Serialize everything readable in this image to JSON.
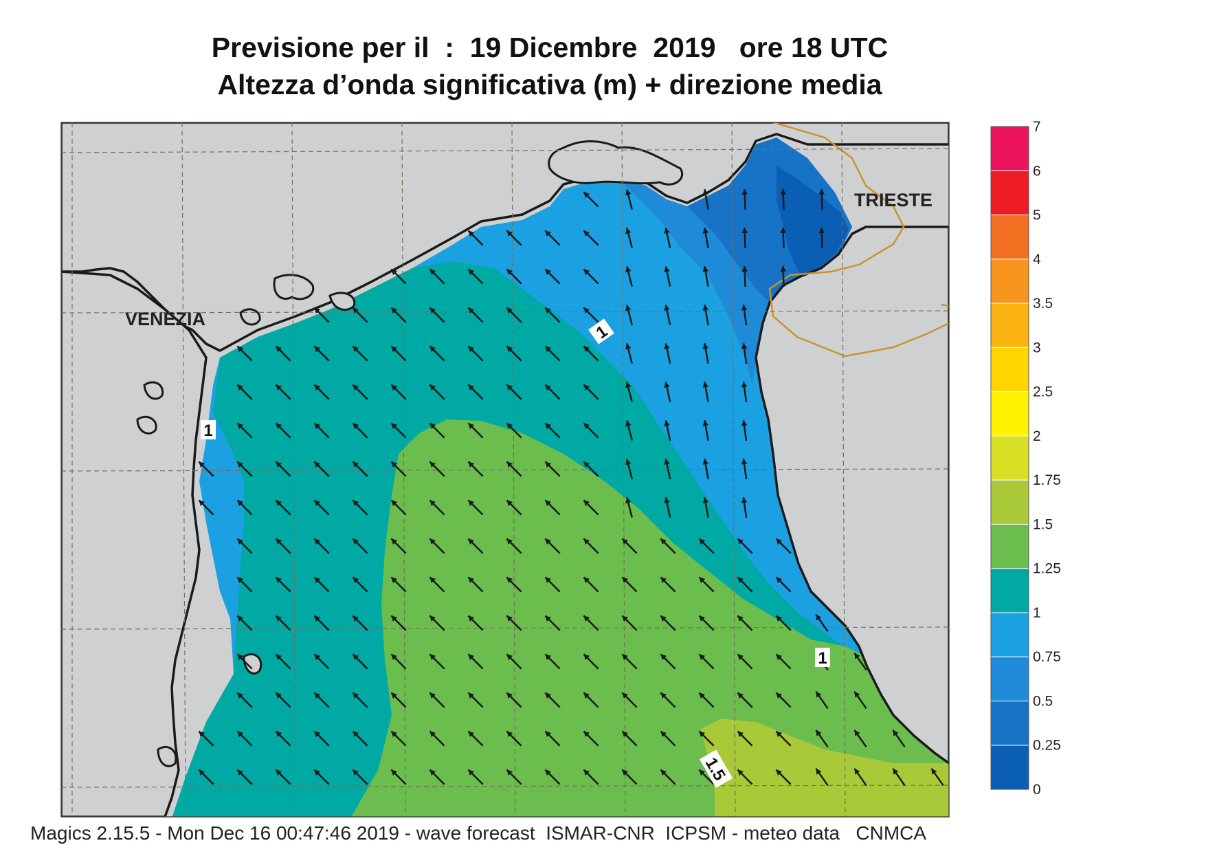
{
  "title": {
    "line1": "Previsione per il  :  19 Dicembre  2019   ore 18 UTC",
    "line2": "Altezza d’onda significativa (m) + direzione media"
  },
  "cities": {
    "venezia": "VENEZIA",
    "trieste": "TRIESTE"
  },
  "contour_labels": {
    "upper": "1",
    "left": "1",
    "right": "1",
    "lower": "1.5"
  },
  "footer": "Magics 2.15.5 - Mon Dec 16 00:47:46 2019 - wave forecast  ISMAR-CNR  ICPSM - meteo data   CNMCA",
  "legend": {
    "levels": [
      {
        "label": "0",
        "color": "#0a5fb4"
      },
      {
        "label": "0.25",
        "color": "#1673c6"
      },
      {
        "label": "0.5",
        "color": "#1e8ad8"
      },
      {
        "label": "0.75",
        "color": "#1ba1e2"
      },
      {
        "label": "1",
        "color": "#00a9a3"
      },
      {
        "label": "1.25",
        "color": "#6bbd4d"
      },
      {
        "label": "1.5",
        "color": "#a9c939"
      },
      {
        "label": "1.75",
        "color": "#d8df25"
      },
      {
        "label": "2",
        "color": "#fff200"
      },
      {
        "label": "2.5",
        "color": "#ffd500"
      },
      {
        "label": "3",
        "color": "#fcb415"
      },
      {
        "label": "3.5",
        "color": "#f7941d"
      },
      {
        "label": "4",
        "color": "#f26f22"
      },
      {
        "label": "5",
        "color": "#ed1c24"
      },
      {
        "label": "6",
        "color": "#ec145d"
      },
      {
        "label": "7",
        "color": ""
      }
    ]
  },
  "colors": {
    "land": "#cfd0d2",
    "coast": "#1a1a1a",
    "border": "#c8952a",
    "arrow": "#1a1a1a"
  },
  "wave_direction": "NW"
}
